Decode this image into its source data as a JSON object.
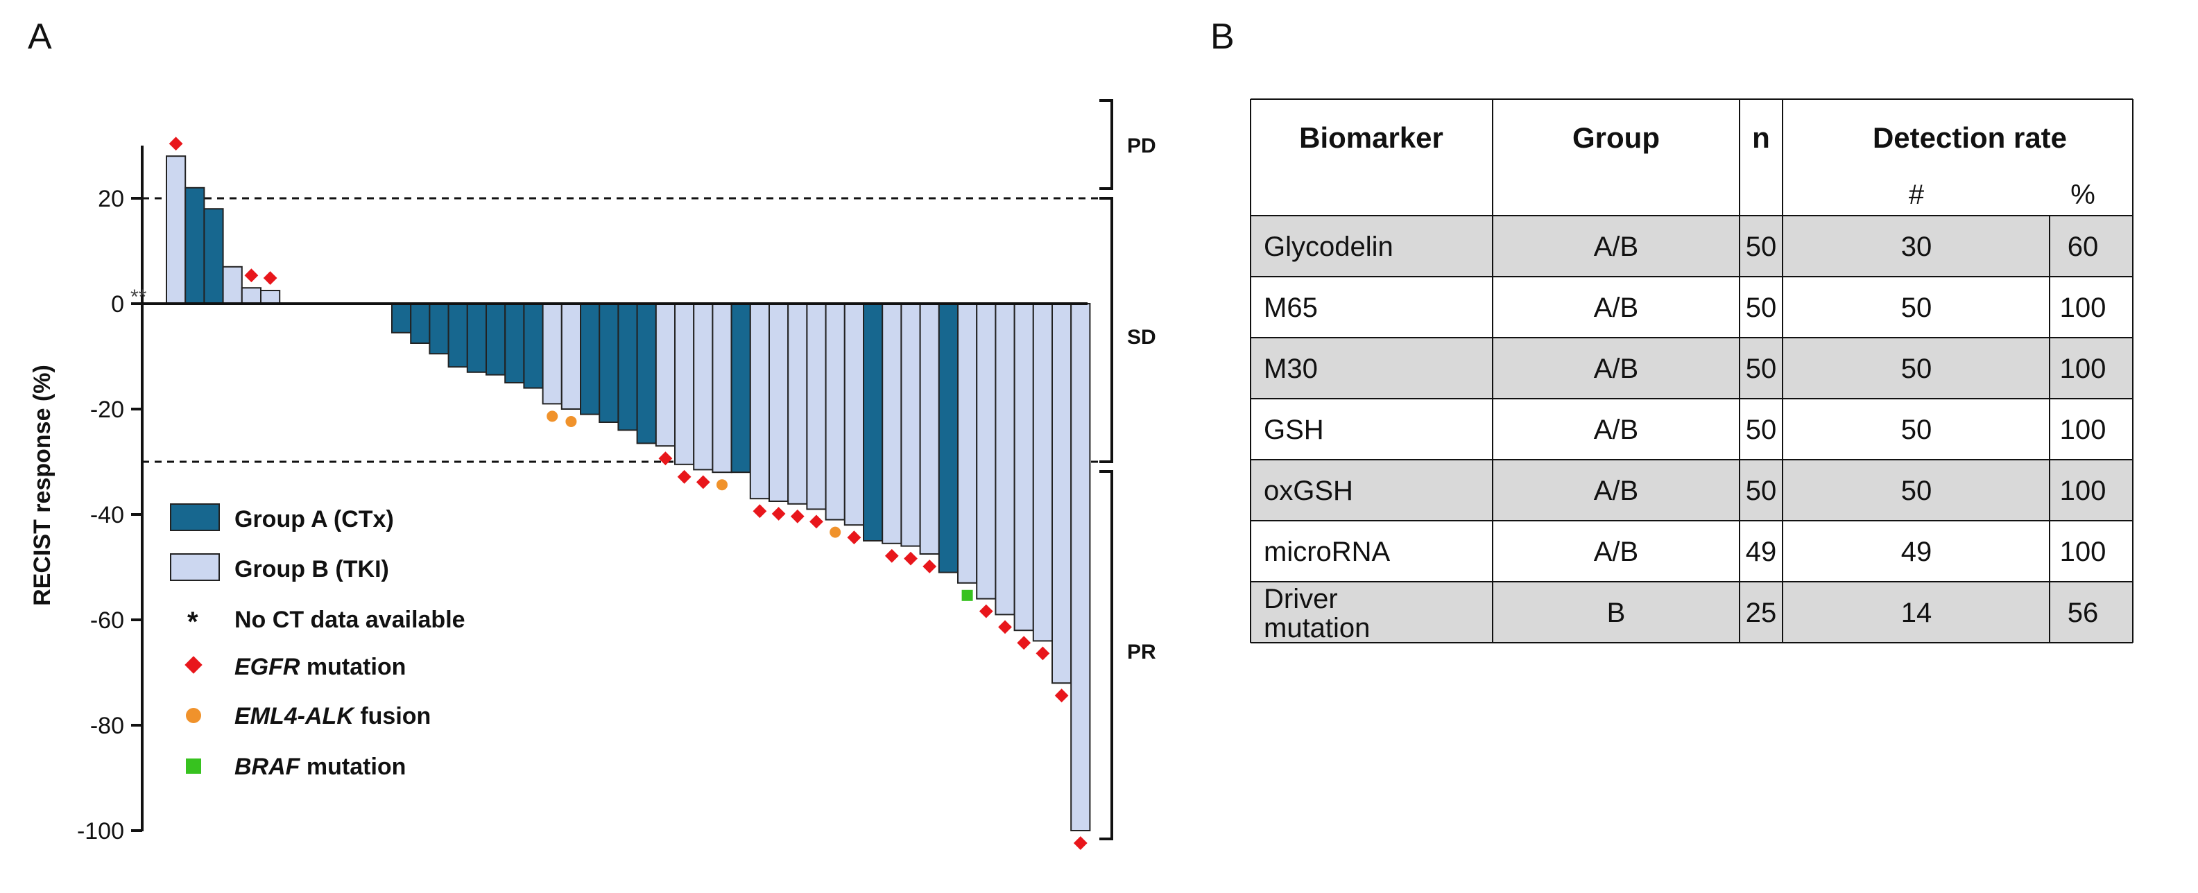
{
  "panels": {
    "a_label": "A",
    "b_label": "B"
  },
  "colors": {
    "group_a": "#17678f",
    "group_b": "#ccd7f0",
    "bar_outline": "#222222",
    "egfr": "#e8161b",
    "eml4_alk": "#f0922b",
    "braf": "#37c21f",
    "table_shade": "#d9d9d9",
    "grid_line": "#111111"
  },
  "chart_data": {
    "type": "bar",
    "title": "",
    "ylabel": "RECIST response (%)",
    "xlabel": "",
    "ylim": [
      -100,
      30
    ],
    "yticks": [
      "20",
      "0",
      "-20",
      "-40",
      "-60",
      "-80",
      "-100"
    ],
    "reference_lines": [
      20,
      -30
    ],
    "legend_position": "lower-left",
    "legend": {
      "group_a": "Group A (CTx)",
      "group_b": "Group B (TKI)",
      "no_ct": "No CT data available",
      "no_ct_symbol": "*",
      "egfr_gene": "EGFR",
      "egfr_rest": " mutation",
      "alk_gene": "EML4-ALK",
      "alk_rest": " fusion",
      "braf_gene": "BRAF",
      "braf_rest": " mutation"
    },
    "response_categories": [
      "PD",
      "SD",
      "PR"
    ],
    "no_ct_marks": "**",
    "series": [
      {
        "name": "Group A (CTx)",
        "group": "A"
      },
      {
        "name": "Group B (TKI)",
        "group": "B"
      }
    ],
    "bars": [
      {
        "value": 28,
        "group": "B",
        "marker": "egfr"
      },
      {
        "value": 22,
        "group": "A",
        "marker": ""
      },
      {
        "value": 18,
        "group": "A",
        "marker": ""
      },
      {
        "value": 7,
        "group": "B",
        "marker": ""
      },
      {
        "value": 3,
        "group": "B",
        "marker": "egfr"
      },
      {
        "value": 2.5,
        "group": "B",
        "marker": "egfr"
      },
      {
        "value": -5.5,
        "group": "A",
        "marker": ""
      },
      {
        "value": -7.5,
        "group": "A",
        "marker": ""
      },
      {
        "value": -9.5,
        "group": "A",
        "marker": ""
      },
      {
        "value": -12,
        "group": "A",
        "marker": ""
      },
      {
        "value": -13,
        "group": "A",
        "marker": ""
      },
      {
        "value": -13.5,
        "group": "A",
        "marker": ""
      },
      {
        "value": -15,
        "group": "A",
        "marker": ""
      },
      {
        "value": -16,
        "group": "A",
        "marker": ""
      },
      {
        "value": -19,
        "group": "B",
        "marker": "alk"
      },
      {
        "value": -20,
        "group": "B",
        "marker": "alk"
      },
      {
        "value": -21,
        "group": "A",
        "marker": ""
      },
      {
        "value": -22.5,
        "group": "A",
        "marker": ""
      },
      {
        "value": -24,
        "group": "A",
        "marker": ""
      },
      {
        "value": -26.5,
        "group": "A",
        "marker": ""
      },
      {
        "value": -27,
        "group": "B",
        "marker": "egfr"
      },
      {
        "value": -30.5,
        "group": "B",
        "marker": "egfr"
      },
      {
        "value": -31.5,
        "group": "B",
        "marker": "egfr"
      },
      {
        "value": -32,
        "group": "B",
        "marker": "alk"
      },
      {
        "value": -32,
        "group": "A",
        "marker": ""
      },
      {
        "value": -37,
        "group": "B",
        "marker": "egfr"
      },
      {
        "value": -37.5,
        "group": "B",
        "marker": "egfr"
      },
      {
        "value": -38,
        "group": "B",
        "marker": "egfr"
      },
      {
        "value": -39,
        "group": "B",
        "marker": "egfr"
      },
      {
        "value": -41,
        "group": "B",
        "marker": "alk"
      },
      {
        "value": -42,
        "group": "B",
        "marker": "egfr"
      },
      {
        "value": -45,
        "group": "A",
        "marker": ""
      },
      {
        "value": -45.5,
        "group": "B",
        "marker": "egfr"
      },
      {
        "value": -46,
        "group": "B",
        "marker": "egfr"
      },
      {
        "value": -47.5,
        "group": "B",
        "marker": "egfr"
      },
      {
        "value": -51,
        "group": "A",
        "marker": ""
      },
      {
        "value": -53,
        "group": "B",
        "marker": "braf"
      },
      {
        "value": -56,
        "group": "B",
        "marker": "egfr"
      },
      {
        "value": -59,
        "group": "B",
        "marker": "egfr"
      },
      {
        "value": -62,
        "group": "B",
        "marker": "egfr"
      },
      {
        "value": -64,
        "group": "B",
        "marker": "egfr"
      },
      {
        "value": -72,
        "group": "B",
        "marker": "egfr"
      },
      {
        "value": -100,
        "group": "B",
        "marker": "egfr"
      }
    ]
  },
  "table": {
    "headers": {
      "biomarker": "Biomarker",
      "group": "Group",
      "n": "n",
      "detection_rate": "Detection rate",
      "count": "#",
      "percent": "%"
    },
    "rows": [
      {
        "biomarker": "Glycodelin",
        "biomarker_line2": "",
        "group": "A/B",
        "n": "50",
        "count": "30",
        "percent": "60",
        "shaded": true
      },
      {
        "biomarker": "M65",
        "biomarker_line2": "",
        "group": "A/B",
        "n": "50",
        "count": "50",
        "percent": "100",
        "shaded": false
      },
      {
        "biomarker": "M30",
        "biomarker_line2": "",
        "group": "A/B",
        "n": "50",
        "count": "50",
        "percent": "100",
        "shaded": true
      },
      {
        "biomarker": "GSH",
        "biomarker_line2": "",
        "group": "A/B",
        "n": "50",
        "count": "50",
        "percent": "100",
        "shaded": false
      },
      {
        "biomarker": "oxGSH",
        "biomarker_line2": "",
        "group": "A/B",
        "n": "50",
        "count": "50",
        "percent": "100",
        "shaded": true
      },
      {
        "biomarker": "microRNA",
        "biomarker_line2": "",
        "group": "A/B",
        "n": "49",
        "count": "49",
        "percent": "100",
        "shaded": false
      },
      {
        "biomarker": "Driver",
        "biomarker_line2": "mutation",
        "group": "B",
        "n": "25",
        "count": "14",
        "percent": "56",
        "shaded": true
      }
    ]
  }
}
